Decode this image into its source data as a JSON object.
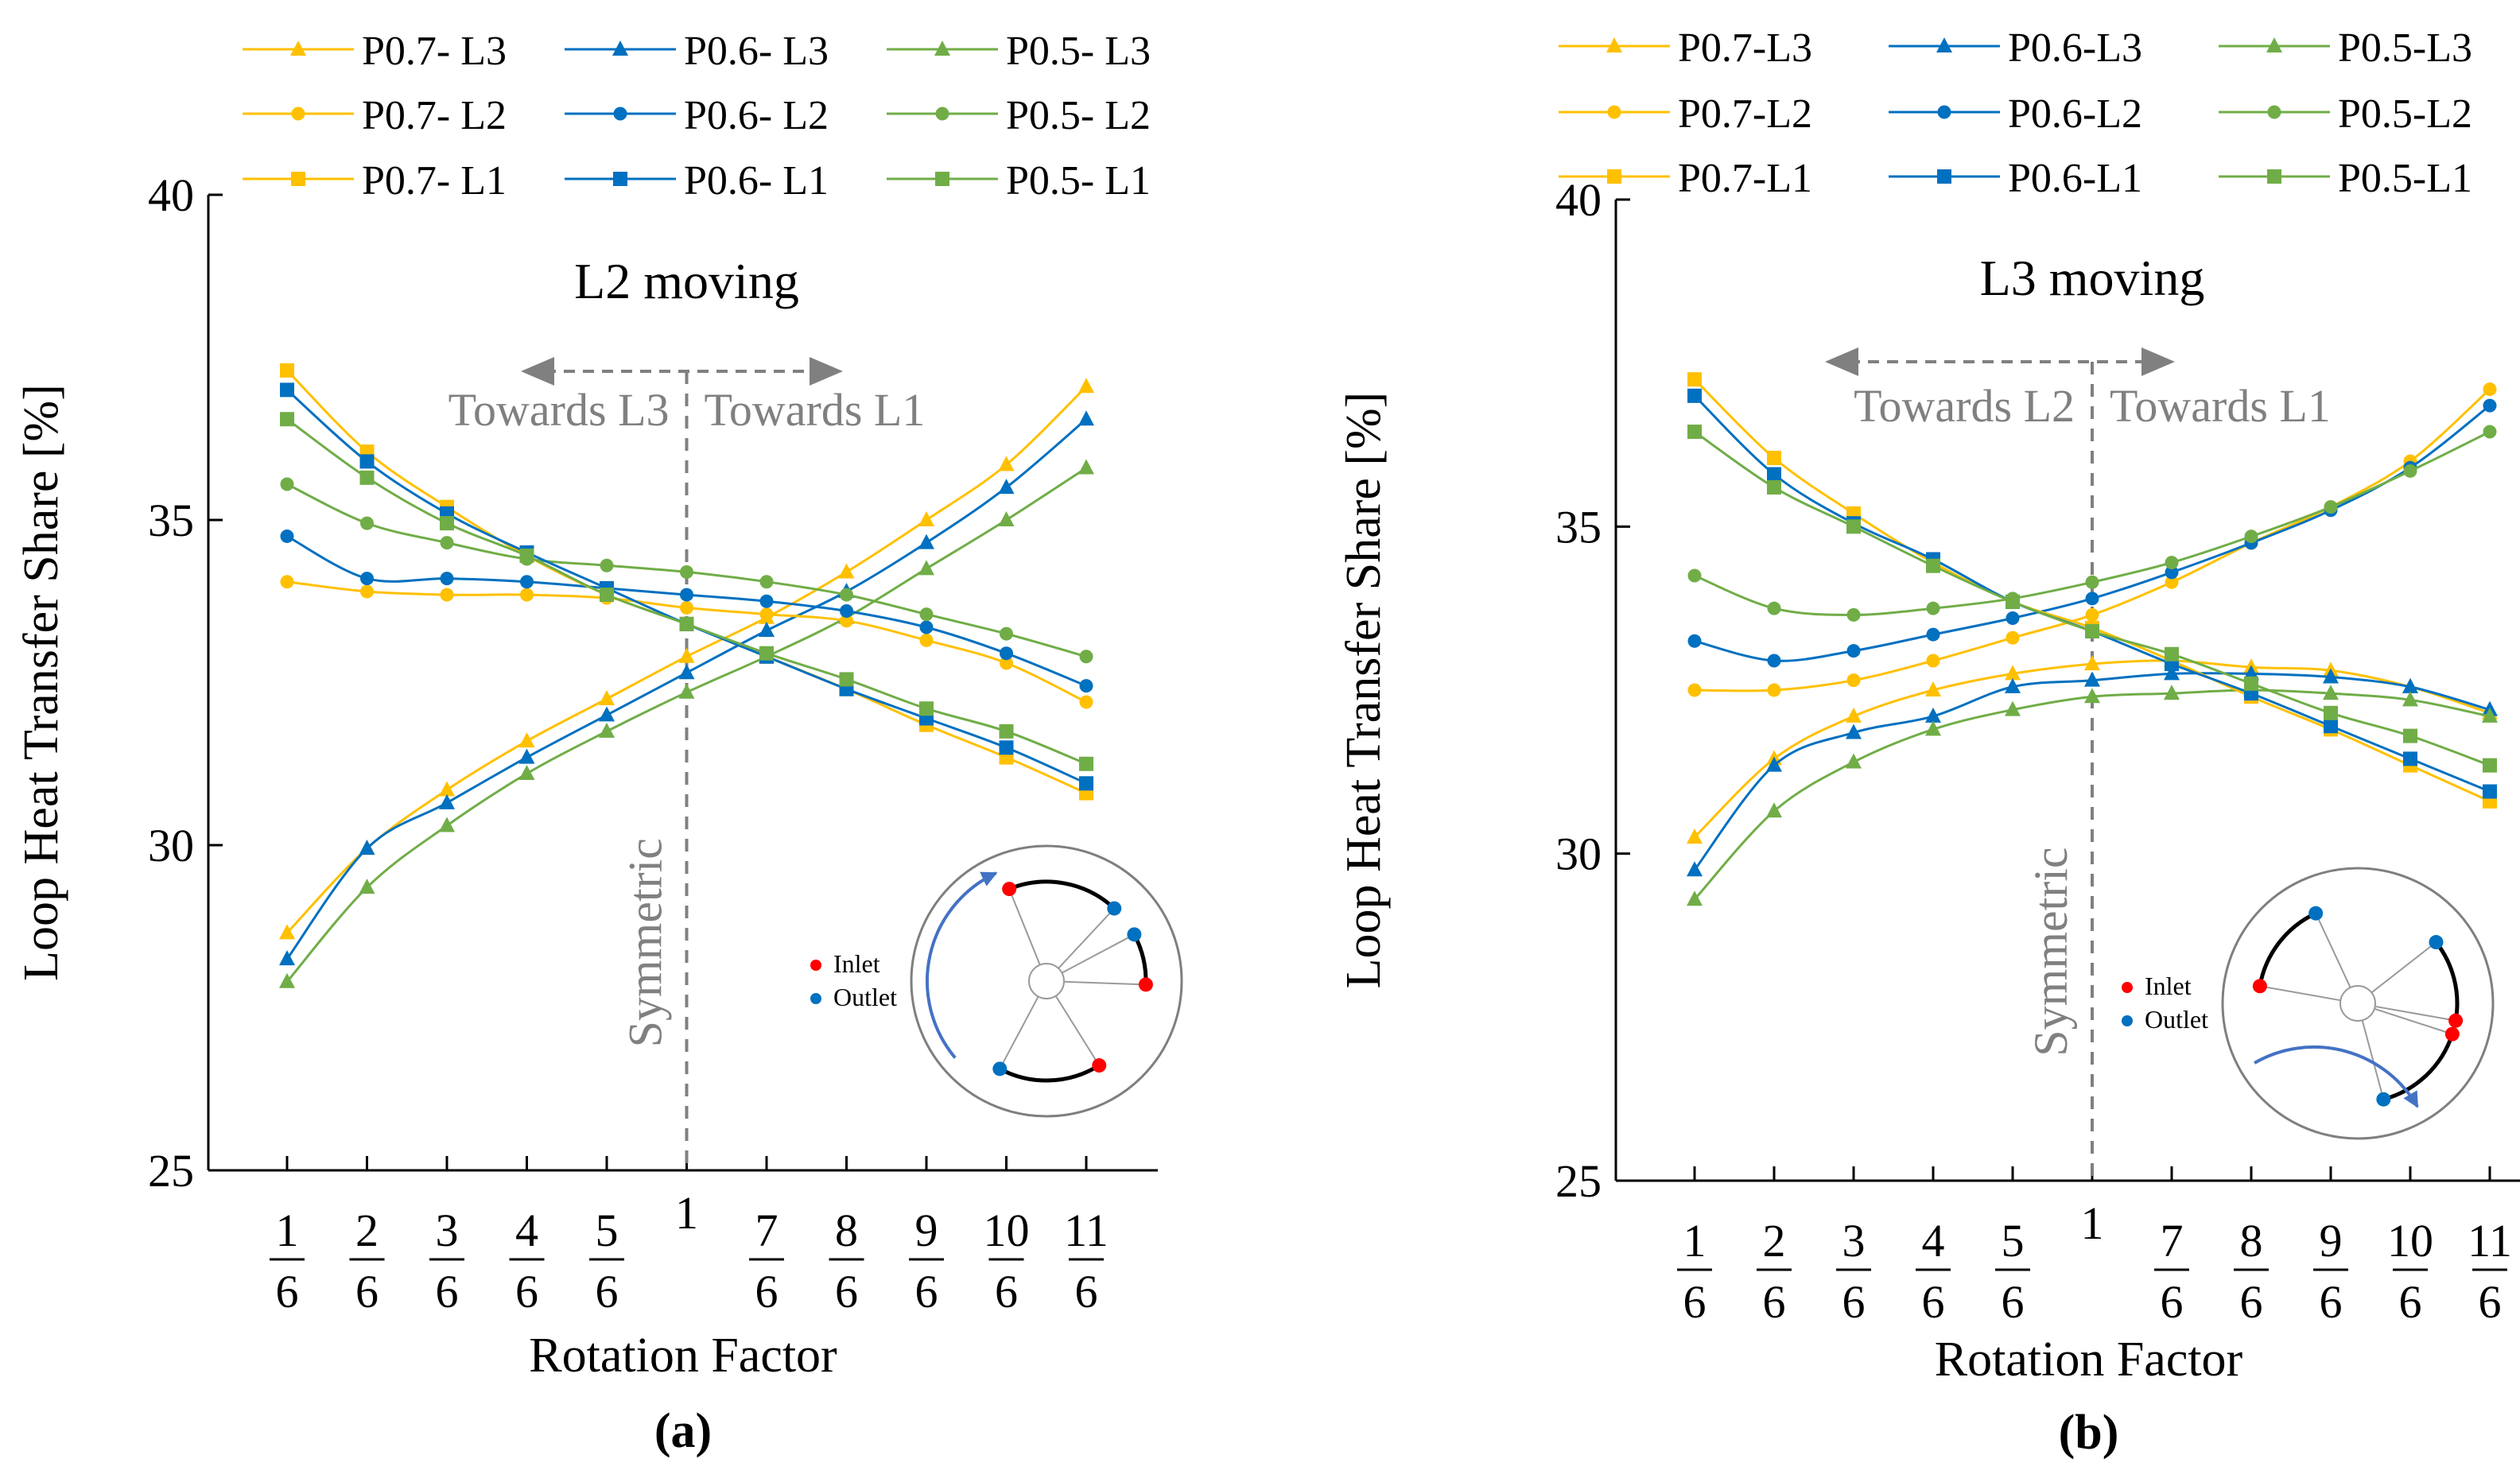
{
  "colors": {
    "P0.7": "#FFC000",
    "P0.6": "#0070C0",
    "P0.5": "#70AD47",
    "axis": "#000000",
    "annotation": "#808080",
    "inlet": "#FF0000",
    "outlet": "#0070C0",
    "rotation_arrow": "#4472C4"
  },
  "x_tick_labels": [
    {
      "num": "1",
      "den": "6"
    },
    {
      "num": "2",
      "den": "6"
    },
    {
      "num": "3",
      "den": "6"
    },
    {
      "num": "4",
      "den": "6"
    },
    {
      "num": "5",
      "den": "6"
    },
    {
      "num": "1",
      "den": ""
    },
    {
      "num": "7",
      "den": "6"
    },
    {
      "num": "8",
      "den": "6"
    },
    {
      "num": "9",
      "den": "6"
    },
    {
      "num": "10",
      "den": "6"
    },
    {
      "num": "11",
      "den": "6"
    }
  ],
  "chart_data": [
    {
      "type": "line",
      "panel_label": "(a)",
      "title": "L2 moving",
      "xlabel": "Rotation Factor",
      "ylabel": "Loop Heat Transfer Share [%]",
      "ylim": [
        25,
        40
      ],
      "yticks": [
        25,
        30,
        35,
        40
      ],
      "legend": [
        "P0.7- L3",
        "P0.6- L3",
        "P0.5- L3",
        "P0.7- L2",
        "P0.6- L2",
        "P0.5- L2",
        "P0.7- L1",
        "P0.6- L1",
        "P0.5- L1"
      ],
      "annotations": {
        "left_arrow": "Towards L3",
        "right_arrow": "Towards L1",
        "center_line": "Symmetric"
      },
      "inset": {
        "inlet_label": "Inlet",
        "outlet_label": "Outlet"
      },
      "series": [
        {
          "name": "P0.7- L3",
          "group": "P0.7",
          "marker": "triangle",
          "values": [
            28.65,
            29.95,
            30.85,
            31.6,
            32.25,
            32.9,
            33.5,
            34.2,
            35.0,
            35.85,
            37.05
          ]
        },
        {
          "name": "P0.6- L3",
          "group": "P0.6",
          "marker": "triangle",
          "values": [
            28.25,
            29.95,
            30.65,
            31.35,
            32.0,
            32.65,
            33.3,
            33.9,
            34.65,
            35.5,
            36.55
          ]
        },
        {
          "name": "P0.5- L3",
          "group": "P0.5",
          "marker": "triangle",
          "values": [
            27.9,
            29.35,
            30.3,
            31.1,
            31.75,
            32.35,
            32.9,
            33.5,
            34.25,
            35.0,
            35.8
          ]
        },
        {
          "name": "P0.7- L2",
          "group": "P0.7",
          "marker": "circle",
          "values": [
            34.05,
            33.9,
            33.85,
            33.85,
            33.8,
            33.65,
            33.55,
            33.45,
            33.15,
            32.8,
            32.2
          ]
        },
        {
          "name": "P0.6- L2",
          "group": "P0.6",
          "marker": "circle",
          "values": [
            34.75,
            34.1,
            34.1,
            34.05,
            33.95,
            33.85,
            33.75,
            33.6,
            33.35,
            32.95,
            32.45
          ]
        },
        {
          "name": "P0.5- L2",
          "group": "P0.5",
          "marker": "circle",
          "values": [
            35.55,
            34.95,
            34.65,
            34.4,
            34.3,
            34.2,
            34.05,
            33.85,
            33.55,
            33.25,
            32.9
          ]
        },
        {
          "name": "P0.7- L1",
          "group": "P0.7",
          "marker": "square",
          "values": [
            37.3,
            36.05,
            35.2,
            34.45,
            33.85,
            33.4,
            32.9,
            32.4,
            31.85,
            31.35,
            30.8
          ]
        },
        {
          "name": "P0.6- L1",
          "group": "P0.6",
          "marker": "square",
          "values": [
            37.0,
            35.9,
            35.1,
            34.5,
            33.95,
            33.4,
            32.9,
            32.4,
            31.95,
            31.5,
            30.95
          ]
        },
        {
          "name": "P0.5- L1",
          "group": "P0.5",
          "marker": "square",
          "values": [
            36.55,
            35.65,
            34.95,
            34.45,
            33.85,
            33.4,
            32.95,
            32.55,
            32.1,
            31.75,
            31.25
          ]
        }
      ]
    },
    {
      "type": "line",
      "panel_label": "(b)",
      "title": "L3 moving",
      "xlabel": "Rotation Factor",
      "ylabel": "Loop Heat Transfer Share [%]",
      "ylim": [
        25,
        40
      ],
      "yticks": [
        25,
        30,
        35,
        40
      ],
      "legend": [
        "P0.7-L3",
        "P0.6-L3",
        "P0.5-L3",
        "P0.7-L2",
        "P0.6-L2",
        "P0.5-L2",
        "P0.7-L1",
        "P0.6-L1",
        "P0.5-L1"
      ],
      "annotations": {
        "left_arrow": "Towards L2",
        "right_arrow": "Towards L1",
        "center_line": "Symmetric"
      },
      "inset": {
        "inlet_label": "Inlet",
        "outlet_label": "Outlet"
      },
      "series": [
        {
          "name": "P0.7-L3",
          "group": "P0.7",
          "marker": "triangle",
          "values": [
            30.25,
            31.45,
            32.1,
            32.5,
            32.75,
            32.9,
            32.95,
            32.85,
            32.8,
            32.55,
            32.15
          ]
        },
        {
          "name": "P0.6-L3",
          "group": "P0.6",
          "marker": "triangle",
          "values": [
            29.75,
            31.35,
            31.85,
            32.1,
            32.55,
            32.65,
            32.75,
            32.75,
            32.7,
            32.55,
            32.2
          ]
        },
        {
          "name": "P0.5-L3",
          "group": "P0.5",
          "marker": "triangle",
          "values": [
            29.3,
            30.65,
            31.4,
            31.9,
            32.2,
            32.4,
            32.45,
            32.5,
            32.45,
            32.35,
            32.1
          ]
        },
        {
          "name": "P0.7-L2",
          "group": "P0.7",
          "marker": "circle",
          "values": [
            32.5,
            32.5,
            32.65,
            32.95,
            33.3,
            33.65,
            34.15,
            34.75,
            35.3,
            36.0,
            37.1
          ]
        },
        {
          "name": "P0.6-L2",
          "group": "P0.6",
          "marker": "circle",
          "values": [
            33.25,
            32.95,
            33.1,
            33.35,
            33.6,
            33.9,
            34.3,
            34.75,
            35.25,
            35.9,
            36.85
          ]
        },
        {
          "name": "P0.5-L2",
          "group": "P0.5",
          "marker": "circle",
          "values": [
            34.25,
            33.75,
            33.65,
            33.75,
            33.9,
            34.15,
            34.45,
            34.85,
            35.3,
            35.85,
            36.45
          ]
        },
        {
          "name": "P0.7-L1",
          "group": "P0.7",
          "marker": "square",
          "values": [
            37.25,
            36.05,
            35.2,
            34.45,
            33.85,
            33.45,
            32.95,
            32.4,
            31.9,
            31.35,
            30.8
          ]
        },
        {
          "name": "P0.6-L1",
          "group": "P0.6",
          "marker": "square",
          "values": [
            37.0,
            35.8,
            35.05,
            34.5,
            33.85,
            33.4,
            32.9,
            32.45,
            31.95,
            31.45,
            30.95
          ]
        },
        {
          "name": "P0.5-L1",
          "group": "P0.5",
          "marker": "square",
          "values": [
            36.45,
            35.6,
            35.0,
            34.4,
            33.85,
            33.4,
            33.05,
            32.6,
            32.15,
            31.8,
            31.35
          ]
        }
      ]
    }
  ]
}
